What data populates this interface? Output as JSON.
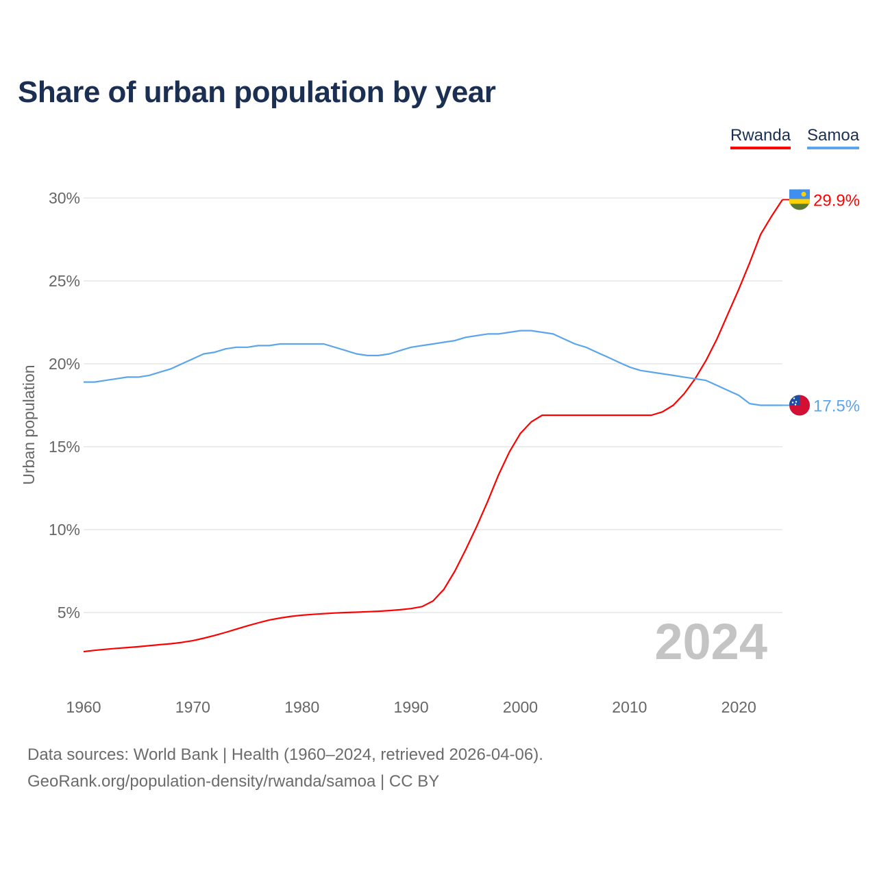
{
  "chart_data": {
    "type": "line",
    "title": "Share of urban population by year",
    "xlabel": "",
    "ylabel": "Urban population",
    "xlim": [
      1960,
      2024
    ],
    "ylim": [
      0,
      30
    ],
    "grid": true,
    "legend_placement": "top-right",
    "x_ticks": [
      1960,
      1970,
      1980,
      1990,
      2000,
      2010,
      2020
    ],
    "x_tick_labels": [
      "1960",
      "1970",
      "1980",
      "1990",
      "2000",
      "2010",
      "2020"
    ],
    "y_ticks": [
      5,
      10,
      15,
      20,
      25,
      30
    ],
    "y_tick_labels": [
      "5%",
      "10%",
      "15%",
      "20%",
      "25%",
      "30%"
    ],
    "year_watermark": "2024",
    "x": [
      1960,
      1961,
      1962,
      1963,
      1964,
      1965,
      1966,
      1967,
      1968,
      1969,
      1970,
      1971,
      1972,
      1973,
      1974,
      1975,
      1976,
      1977,
      1978,
      1979,
      1980,
      1981,
      1982,
      1983,
      1984,
      1985,
      1986,
      1987,
      1988,
      1989,
      1990,
      1991,
      1992,
      1993,
      1994,
      1995,
      1996,
      1997,
      1998,
      1999,
      2000,
      2001,
      2002,
      2003,
      2004,
      2005,
      2006,
      2007,
      2008,
      2009,
      2010,
      2011,
      2012,
      2013,
      2014,
      2015,
      2016,
      2017,
      2018,
      2019,
      2020,
      2021,
      2022,
      2023,
      2024
    ],
    "series": [
      {
        "name": "Rwanda",
        "color": "#ff0000",
        "end_label": "29.9%",
        "values": [
          2.64,
          2.72,
          2.78,
          2.84,
          2.89,
          2.94,
          3.0,
          3.06,
          3.12,
          3.2,
          3.3,
          3.45,
          3.62,
          3.8,
          4.0,
          4.2,
          4.38,
          4.55,
          4.67,
          4.77,
          4.84,
          4.89,
          4.93,
          4.97,
          5.0,
          5.02,
          5.05,
          5.08,
          5.12,
          5.17,
          5.24,
          5.36,
          5.7,
          6.4,
          7.5,
          8.8,
          10.2,
          11.7,
          13.3,
          14.7,
          15.8,
          16.5,
          16.9,
          16.9,
          16.9,
          16.9,
          16.9,
          16.9,
          16.9,
          16.9,
          16.9,
          16.9,
          16.9,
          17.1,
          17.5,
          18.2,
          19.1,
          20.2,
          21.5,
          23.0,
          24.5,
          26.1,
          27.8,
          28.9,
          29.9
        ]
      },
      {
        "name": "Samoa",
        "color": "#5aa5ec",
        "end_label": "17.5%",
        "values": [
          18.9,
          18.9,
          19.0,
          19.1,
          19.2,
          19.2,
          19.3,
          19.5,
          19.7,
          20.0,
          20.3,
          20.6,
          20.7,
          20.9,
          21.0,
          21.0,
          21.1,
          21.1,
          21.2,
          21.2,
          21.2,
          21.2,
          21.2,
          21.0,
          20.8,
          20.6,
          20.5,
          20.5,
          20.6,
          20.8,
          21.0,
          21.1,
          21.2,
          21.3,
          21.4,
          21.6,
          21.7,
          21.8,
          21.8,
          21.9,
          22.0,
          22.0,
          21.9,
          21.8,
          21.5,
          21.2,
          21.0,
          20.7,
          20.4,
          20.1,
          19.8,
          19.6,
          19.5,
          19.4,
          19.3,
          19.2,
          19.1,
          19.0,
          18.7,
          18.4,
          18.1,
          17.6,
          17.5,
          17.5,
          17.5
        ]
      }
    ]
  },
  "sources": {
    "line1": "Data sources: World Bank | Health (1960–2024, retrieved 2026-04-06).",
    "line2": "GeoRank.org/population-density/rwanda/samoa | CC BY"
  }
}
